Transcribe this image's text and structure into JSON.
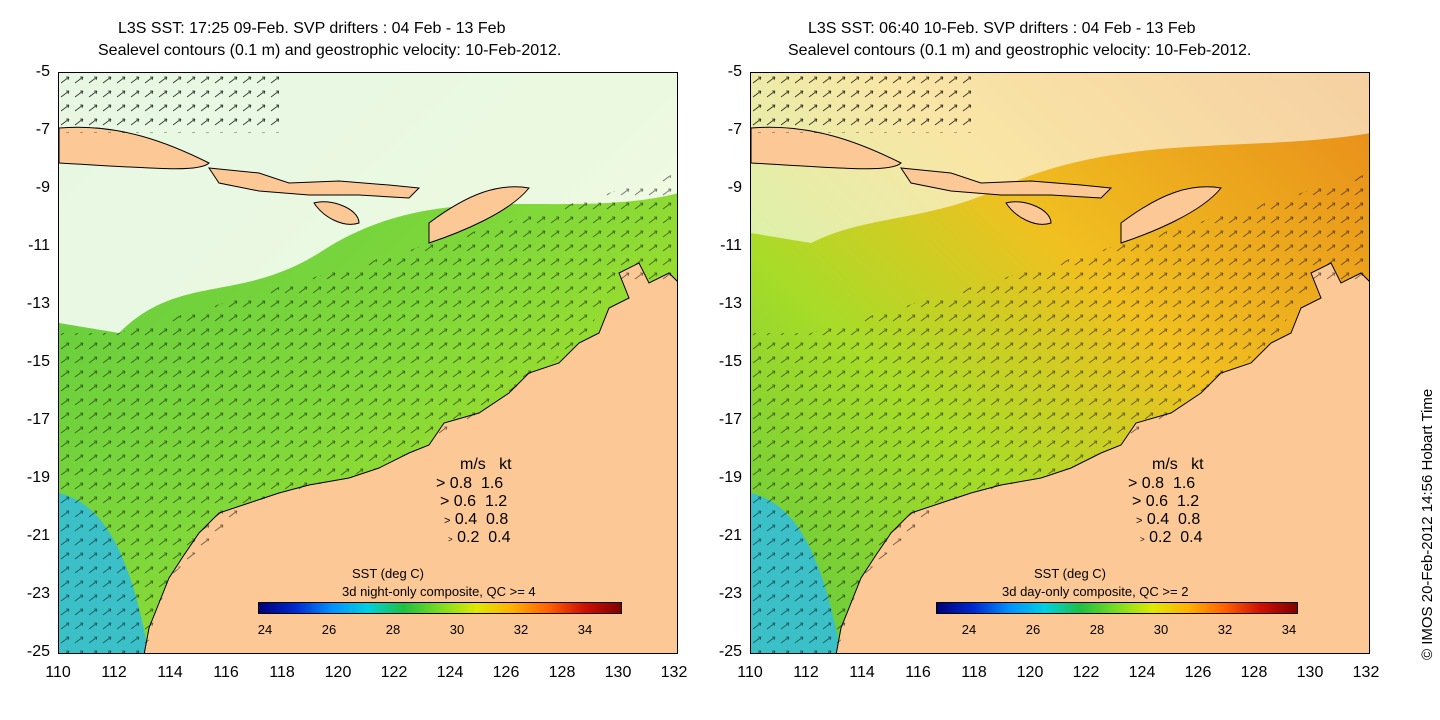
{
  "left": {
    "title_line1": "L3S SST: 17:25 09-Feb. SVP drifters : 04 Feb - 13 Feb",
    "title_line2": "Sealevel contours (0.1 m) and geostrophic velocity: 10-Feb-2012.",
    "cb_title": "SST (deg C)",
    "cb_sub": "3d night-only composite, QC >= 4"
  },
  "right": {
    "title_line1": "L3S SST: 06:40 10-Feb. SVP drifters : 04 Feb - 13 Feb",
    "title_line2": "Sealevel contours (0.1 m) and geostrophic velocity: 10-Feb-2012.",
    "cb_title": "SST (deg C)",
    "cb_sub": "3d day-only composite, QC >= 2"
  },
  "y_ticks": [
    "-5",
    "-7",
    "-9",
    "-11",
    "-13",
    "-15",
    "-17",
    "-19",
    "-21",
    "-23",
    "-25"
  ],
  "x_ticks": [
    "110",
    "112",
    "114",
    "116",
    "118",
    "120",
    "122",
    "124",
    "126",
    "128",
    "130",
    "132"
  ],
  "cb_ticks": [
    "24",
    "26",
    "28",
    "30",
    "32",
    "34"
  ],
  "velocity_legend": {
    "header_ms": "m/s",
    "header_kt": "kt",
    "rows": [
      {
        "ms": "0.8",
        "kt": "1.6"
      },
      {
        "ms": "0.6",
        "kt": "1.2"
      },
      {
        "ms": "0.4",
        "kt": "0.8"
      },
      {
        "ms": "0.2",
        "kt": "0.4"
      }
    ]
  },
  "credit": "© IMOS 20-Feb-2012 14:56 Hobart Time",
  "colors": {
    "land": "#fcc896",
    "sea_green": "#6cd24a",
    "sea_yellow": "#c8e61c",
    "sea_orange": "#f2b020",
    "sea_cyan": "#40c0e0"
  }
}
